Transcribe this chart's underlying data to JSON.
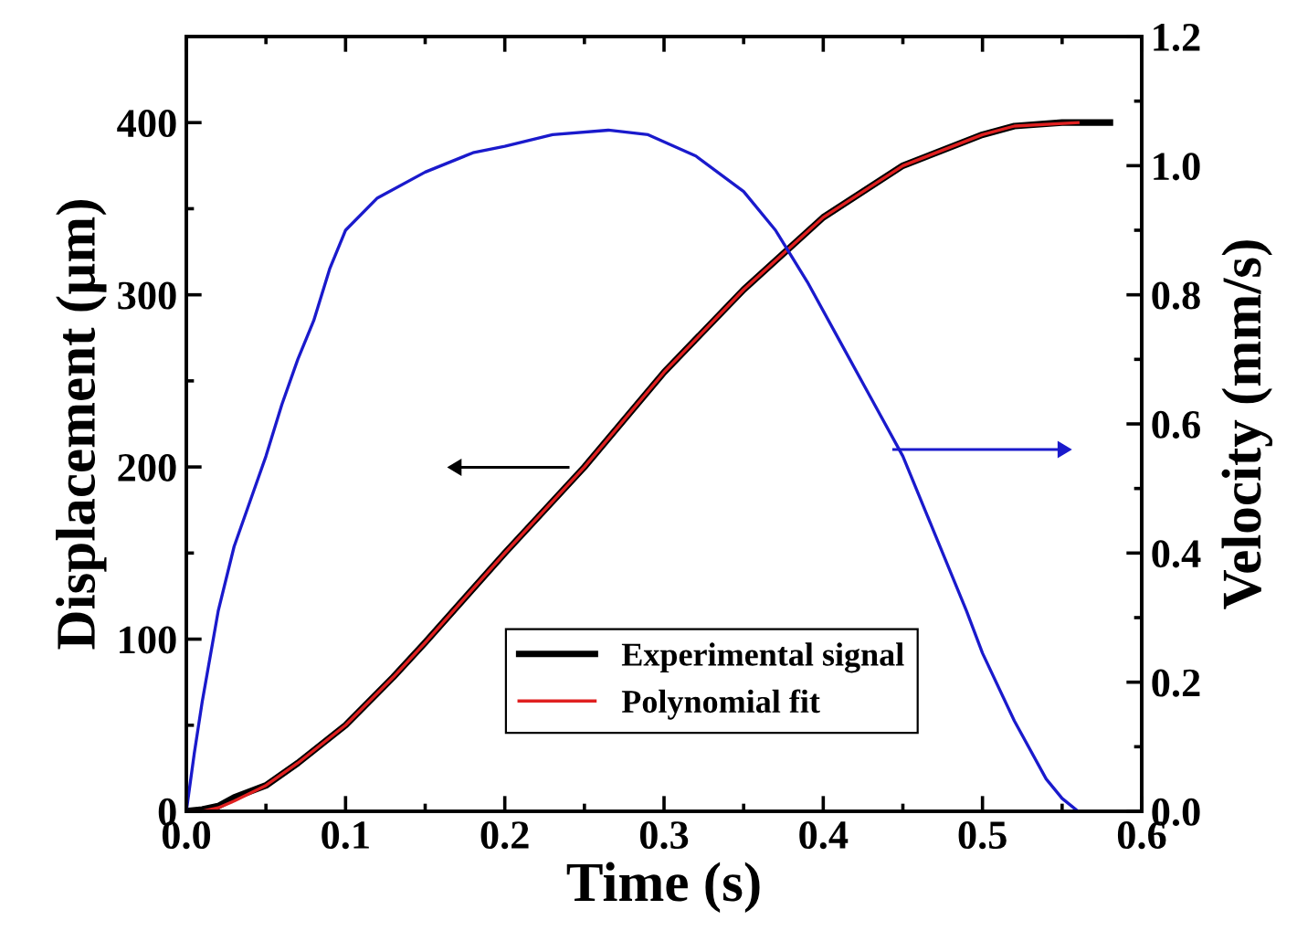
{
  "chart_data": {
    "type": "line",
    "xlabel": "Time (s)",
    "ylabel": "Displacement (µm)",
    "y2label": "Velocity (mm/s)",
    "xlim": [
      0,
      0.6
    ],
    "xticks": [
      {
        "value": 0,
        "label": "0.0"
      },
      0.1,
      0.2,
      0.3,
      0.4,
      0.5,
      0.6
    ],
    "ylim": [
      0,
      450
    ],
    "yticks": [
      0,
      100,
      200,
      300,
      400
    ],
    "y2lim": [
      0,
      1.2
    ],
    "y2ticks": [
      {
        "value": 0,
        "label": "0.0"
      },
      0.2,
      0.4,
      0.6,
      0.8,
      {
        "value": 1.0,
        "label": "1.0"
      },
      1.2
    ],
    "grid": false,
    "legend": "bottom",
    "marker": "none",
    "line_style": "solid",
    "series": [
      {
        "name": "Experimental signal",
        "color": "#000000",
        "x": [
          0,
          0.01,
          0.02,
          0.03,
          0.05,
          0.07,
          0.1,
          0.13,
          0.15,
          0.2,
          0.25,
          0.3,
          0.35,
          0.4,
          0.45,
          0.5,
          0.52,
          0.55,
          0.58
        ],
        "values": [
          0,
          1,
          3,
          8,
          15,
          28,
          50,
          78,
          98,
          150,
          200,
          255,
          303,
          345,
          375,
          393,
          398,
          400,
          400
        ]
      },
      {
        "name": "Polynomial fit",
        "color": "#e02020",
        "x": [
          0,
          0.01,
          0.02,
          0.03,
          0.05,
          0.07,
          0.1,
          0.13,
          0.15,
          0.2,
          0.25,
          0.3,
          0.35,
          0.4,
          0.45,
          0.5,
          0.52,
          0.56
        ],
        "values": [
          0,
          0,
          2,
          6,
          15,
          28,
          50,
          78,
          98,
          150,
          200,
          255,
          303,
          345,
          375,
          393,
          398,
          400
        ]
      },
      {
        "color": "#1a1acc",
        "axis": "y2",
        "x": [
          0,
          0.005,
          0.01,
          0.02,
          0.03,
          0.04,
          0.05,
          0.06,
          0.07,
          0.08,
          0.09,
          0.1,
          0.12,
          0.15,
          0.18,
          0.2,
          0.23,
          0.265,
          0.29,
          0.32,
          0.35,
          0.37,
          0.39,
          0.41,
          0.43,
          0.45,
          0.47,
          0.49,
          0.5,
          0.52,
          0.54,
          0.55,
          0.56
        ],
        "values": [
          0,
          0.09,
          0.17,
          0.31,
          0.41,
          0.48,
          0.55,
          0.63,
          0.7,
          0.76,
          0.84,
          0.9,
          0.95,
          0.99,
          1.02,
          1.03,
          1.048,
          1.055,
          1.048,
          1.015,
          0.96,
          0.9,
          0.82,
          0.73,
          0.64,
          0.55,
          0.43,
          0.31,
          0.245,
          0.14,
          0.05,
          0.02,
          0
        ]
      }
    ]
  }
}
